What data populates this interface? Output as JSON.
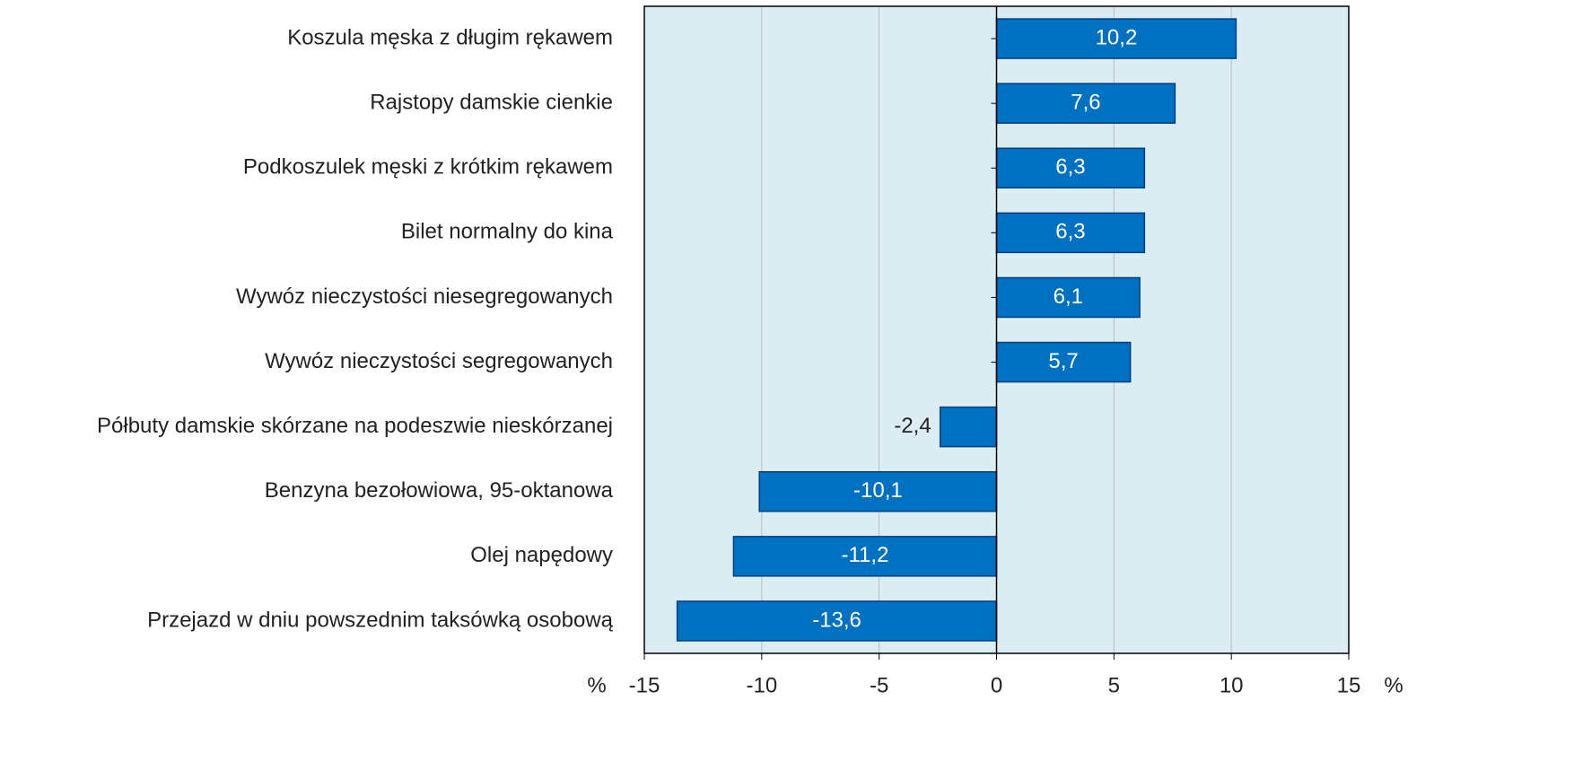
{
  "chart_data": {
    "type": "barh",
    "categories": [
      "Koszula męska z długim rękawem",
      "Rajstopy damskie cienkie",
      "Podkoszulek męski z krótkim rękawem",
      "Bilet normalny do kina",
      "Wywóz nieczystości niesegregowanych",
      "Wywóz nieczystości segregowanych",
      "Półbuty damskie skórzane na podeszwie nieskórzanej",
      "Benzyna bezołowiowa, 95-oktanowa",
      "Olej napędowy",
      "Przejazd w dniu powszednim taksówką osobową"
    ],
    "values": [
      10.2,
      7.6,
      6.3,
      6.3,
      6.1,
      5.7,
      -2.4,
      -10.1,
      -11.2,
      -13.6
    ],
    "value_labels": [
      "10,2",
      "7,6",
      "6,3",
      "6,3",
      "6,1",
      "5,7",
      "-2,4",
      "-10,1",
      "-11,2",
      "-13,6"
    ],
    "color": "#0070c0",
    "xlabel": "%",
    "xlim": [
      -15,
      15
    ],
    "xticks": [
      -15,
      -10,
      -5,
      0,
      5,
      10,
      15
    ],
    "grid": true
  }
}
